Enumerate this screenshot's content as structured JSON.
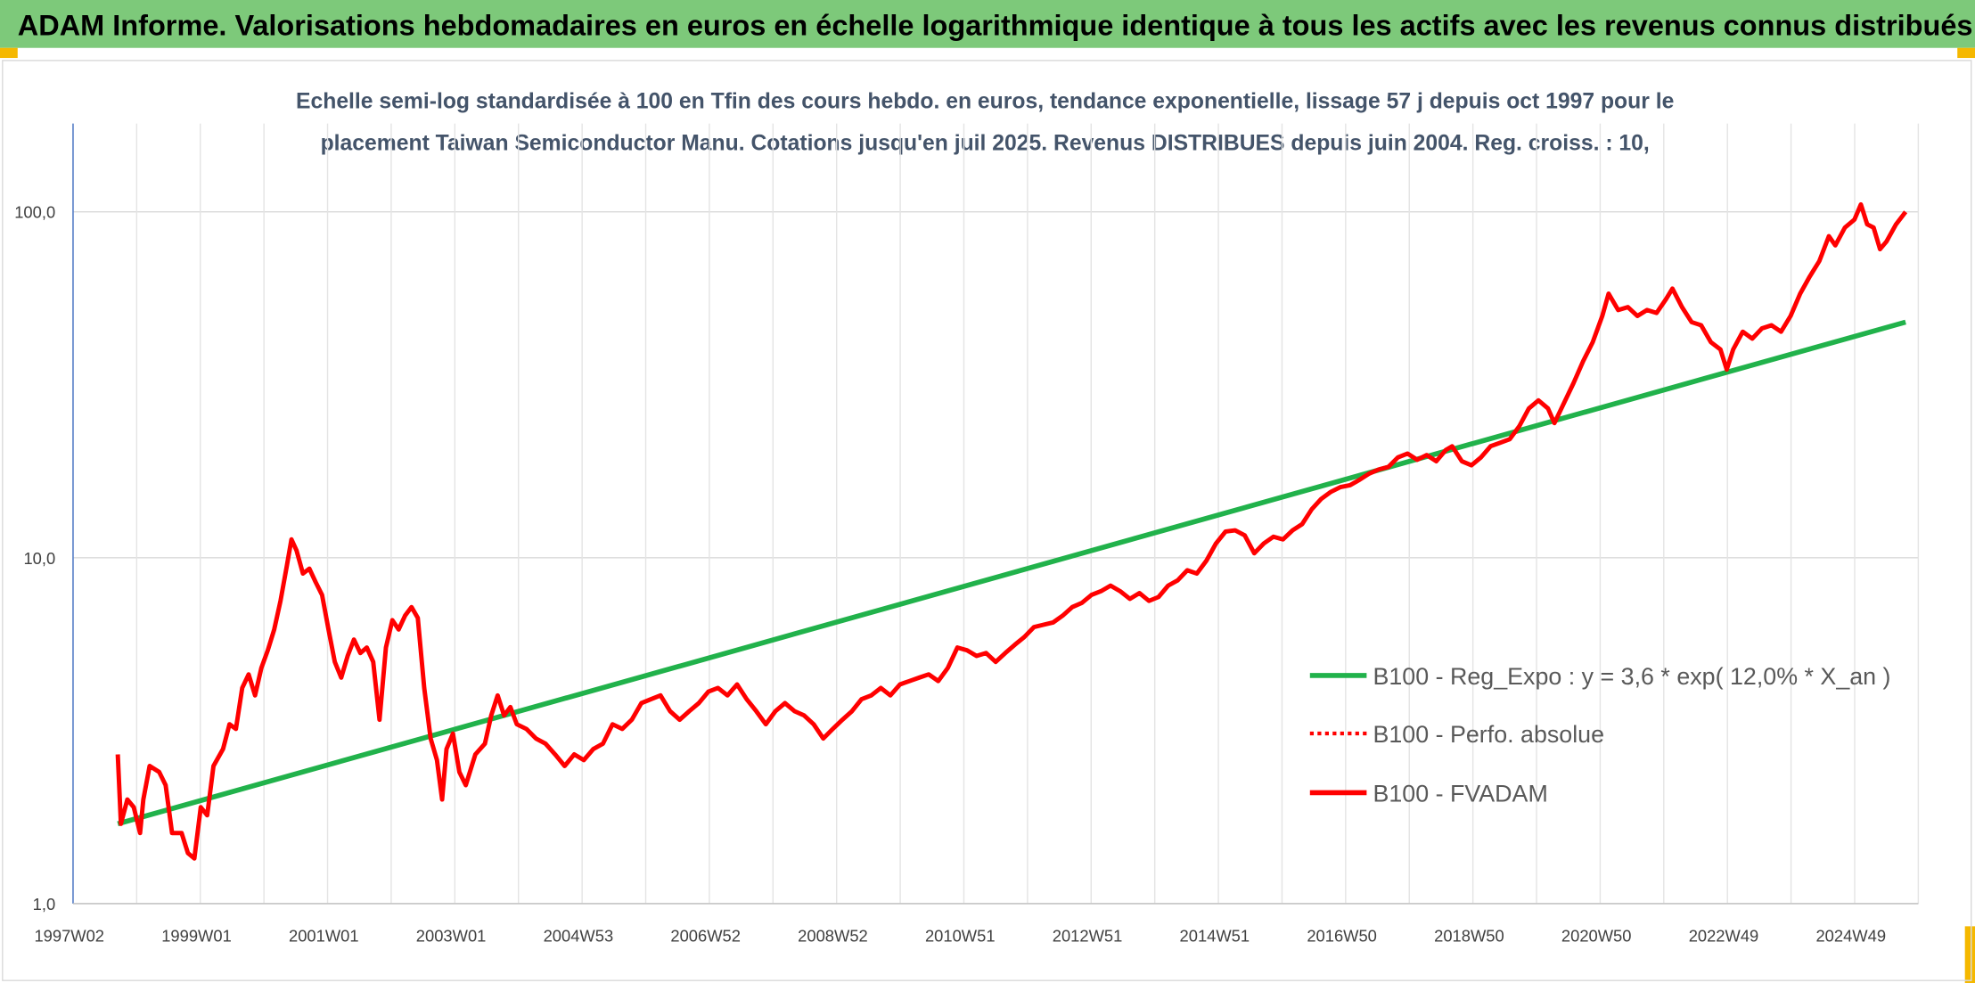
{
  "header": {
    "title": "ADAM Informe. Valorisations hebdomadaires en euros en échelle logarithmique identique à tous les actifs avec les revenus connus distribués",
    "background": "#7dc97a"
  },
  "chart_data": {
    "type": "line",
    "title_line1": "Echelle semi-log standardisée à 100 en Tfin des cours hebdo. en euros, tendance exponentielle, lissage 57 j depuis oct 1997 pour le",
    "title_line2": "placement Taiwan Semiconductor Manu. Cotations jusqu'en juil 2025. Revenus DISTRIBUES depuis juin 2004. Reg. croiss. : 10,",
    "y_scale": "log",
    "ylim": [
      1,
      180
    ],
    "y_ticks": [
      {
        "value": 1,
        "label": "1,0"
      },
      {
        "value": 10,
        "label": "10,0"
      },
      {
        "value": 100,
        "label": "100,0"
      }
    ],
    "x_tick_labels": [
      "1997W02",
      "1999W01",
      "2001W01",
      "2003W01",
      "2004W53",
      "2006W52",
      "2008W52",
      "2010W51",
      "2012W51",
      "2014W51",
      "2016W50",
      "2018W50",
      "2020W50",
      "2022W49",
      "2024W49"
    ],
    "xlim": [
      1997.0,
      2025.9
    ],
    "grid": true,
    "legend_position": "right",
    "series": [
      {
        "name": "B100 - Reg_Expo : y = 3,6 * exp( 12,0% *  X_an )",
        "color": "#21b24b",
        "style": "solid",
        "points": [
          [
            1997.7,
            1.7
          ],
          [
            2025.7,
            48.0
          ]
        ]
      },
      {
        "name": "B100 - Perfo. absolue",
        "color": "#ff0000",
        "style": "dotted",
        "points": []
      },
      {
        "name": "B100 - FVADAM",
        "color": "#ff0000",
        "style": "solid",
        "points": [
          [
            1997.7,
            2.7
          ],
          [
            1997.75,
            1.7
          ],
          [
            1997.85,
            2.0
          ],
          [
            1997.95,
            1.9
          ],
          [
            1998.05,
            1.6
          ],
          [
            1998.1,
            2.0
          ],
          [
            1998.2,
            2.5
          ],
          [
            1998.35,
            2.4
          ],
          [
            1998.45,
            2.2
          ],
          [
            1998.55,
            1.6
          ],
          [
            1998.7,
            1.6
          ],
          [
            1998.8,
            1.4
          ],
          [
            1998.9,
            1.35
          ],
          [
            1999.0,
            1.9
          ],
          [
            1999.1,
            1.8
          ],
          [
            1999.2,
            2.5
          ],
          [
            1999.35,
            2.8
          ],
          [
            1999.45,
            3.3
          ],
          [
            1999.55,
            3.2
          ],
          [
            1999.65,
            4.2
          ],
          [
            1999.75,
            4.6
          ],
          [
            1999.85,
            4.0
          ],
          [
            1999.95,
            4.8
          ],
          [
            2000.05,
            5.4
          ],
          [
            2000.15,
            6.2
          ],
          [
            2000.25,
            7.5
          ],
          [
            2000.35,
            9.5
          ],
          [
            2000.42,
            11.3
          ],
          [
            2000.5,
            10.5
          ],
          [
            2000.6,
            9.0
          ],
          [
            2000.7,
            9.3
          ],
          [
            2000.8,
            8.5
          ],
          [
            2000.9,
            7.8
          ],
          [
            2001.0,
            6.2
          ],
          [
            2001.1,
            5.0
          ],
          [
            2001.2,
            4.5
          ],
          [
            2001.3,
            5.2
          ],
          [
            2001.4,
            5.8
          ],
          [
            2001.5,
            5.3
          ],
          [
            2001.6,
            5.5
          ],
          [
            2001.7,
            5.0
          ],
          [
            2001.8,
            3.4
          ],
          [
            2001.9,
            5.5
          ],
          [
            2002.0,
            6.6
          ],
          [
            2002.1,
            6.2
          ],
          [
            2002.2,
            6.8
          ],
          [
            2002.3,
            7.2
          ],
          [
            2002.4,
            6.7
          ],
          [
            2002.5,
            4.2
          ],
          [
            2002.6,
            3.0
          ],
          [
            2002.7,
            2.6
          ],
          [
            2002.78,
            2.0
          ],
          [
            2002.85,
            2.8
          ],
          [
            2002.95,
            3.1
          ],
          [
            2003.05,
            2.4
          ],
          [
            2003.15,
            2.2
          ],
          [
            2003.3,
            2.7
          ],
          [
            2003.45,
            2.9
          ],
          [
            2003.55,
            3.5
          ],
          [
            2003.65,
            4.0
          ],
          [
            2003.75,
            3.5
          ],
          [
            2003.85,
            3.7
          ],
          [
            2003.95,
            3.3
          ],
          [
            2004.1,
            3.2
          ],
          [
            2004.25,
            3.0
          ],
          [
            2004.4,
            2.9
          ],
          [
            2004.55,
            2.7
          ],
          [
            2004.7,
            2.5
          ],
          [
            2004.85,
            2.7
          ],
          [
            2005.0,
            2.6
          ],
          [
            2005.15,
            2.8
          ],
          [
            2005.3,
            2.9
          ],
          [
            2005.45,
            3.3
          ],
          [
            2005.6,
            3.2
          ],
          [
            2005.75,
            3.4
          ],
          [
            2005.9,
            3.8
          ],
          [
            2006.05,
            3.9
          ],
          [
            2006.2,
            4.0
          ],
          [
            2006.35,
            3.6
          ],
          [
            2006.5,
            3.4
          ],
          [
            2006.65,
            3.6
          ],
          [
            2006.8,
            3.8
          ],
          [
            2006.95,
            4.1
          ],
          [
            2007.1,
            4.2
          ],
          [
            2007.25,
            4.0
          ],
          [
            2007.4,
            4.3
          ],
          [
            2007.55,
            3.9
          ],
          [
            2007.7,
            3.6
          ],
          [
            2007.85,
            3.3
          ],
          [
            2008.0,
            3.6
          ],
          [
            2008.15,
            3.8
          ],
          [
            2008.3,
            3.6
          ],
          [
            2008.45,
            3.5
          ],
          [
            2008.6,
            3.3
          ],
          [
            2008.75,
            3.0
          ],
          [
            2008.9,
            3.2
          ],
          [
            2009.05,
            3.4
          ],
          [
            2009.2,
            3.6
          ],
          [
            2009.35,
            3.9
          ],
          [
            2009.5,
            4.0
          ],
          [
            2009.65,
            4.2
          ],
          [
            2009.8,
            4.0
          ],
          [
            2009.95,
            4.3
          ],
          [
            2010.1,
            4.4
          ],
          [
            2010.25,
            4.5
          ],
          [
            2010.4,
            4.6
          ],
          [
            2010.55,
            4.4
          ],
          [
            2010.7,
            4.8
          ],
          [
            2010.85,
            5.5
          ],
          [
            2011.0,
            5.4
          ],
          [
            2011.15,
            5.2
          ],
          [
            2011.3,
            5.3
          ],
          [
            2011.45,
            5.0
          ],
          [
            2011.6,
            5.3
          ],
          [
            2011.75,
            5.6
          ],
          [
            2011.9,
            5.9
          ],
          [
            2012.05,
            6.3
          ],
          [
            2012.2,
            6.4
          ],
          [
            2012.35,
            6.5
          ],
          [
            2012.5,
            6.8
          ],
          [
            2012.65,
            7.2
          ],
          [
            2012.8,
            7.4
          ],
          [
            2012.95,
            7.8
          ],
          [
            2013.1,
            8.0
          ],
          [
            2013.25,
            8.3
          ],
          [
            2013.4,
            8.0
          ],
          [
            2013.55,
            7.6
          ],
          [
            2013.7,
            7.9
          ],
          [
            2013.85,
            7.5
          ],
          [
            2014.0,
            7.7
          ],
          [
            2014.15,
            8.3
          ],
          [
            2014.3,
            8.6
          ],
          [
            2014.45,
            9.2
          ],
          [
            2014.6,
            9.0
          ],
          [
            2014.75,
            9.8
          ],
          [
            2014.9,
            11.0
          ],
          [
            2015.05,
            11.9
          ],
          [
            2015.2,
            12.0
          ],
          [
            2015.35,
            11.6
          ],
          [
            2015.5,
            10.3
          ],
          [
            2015.65,
            11.0
          ],
          [
            2015.8,
            11.5
          ],
          [
            2015.95,
            11.3
          ],
          [
            2016.1,
            12.0
          ],
          [
            2016.25,
            12.5
          ],
          [
            2016.4,
            13.8
          ],
          [
            2016.55,
            14.8
          ],
          [
            2016.7,
            15.5
          ],
          [
            2016.85,
            16.0
          ],
          [
            2017.0,
            16.2
          ],
          [
            2017.15,
            16.8
          ],
          [
            2017.3,
            17.5
          ],
          [
            2017.45,
            18.0
          ],
          [
            2017.6,
            18.3
          ],
          [
            2017.75,
            19.5
          ],
          [
            2017.9,
            20.0
          ],
          [
            2018.05,
            19.2
          ],
          [
            2018.2,
            19.8
          ],
          [
            2018.35,
            19.0
          ],
          [
            2018.5,
            20.5
          ],
          [
            2018.6,
            21.0
          ],
          [
            2018.75,
            19.0
          ],
          [
            2018.9,
            18.5
          ],
          [
            2019.05,
            19.5
          ],
          [
            2019.2,
            21.0
          ],
          [
            2019.35,
            21.5
          ],
          [
            2019.5,
            22.0
          ],
          [
            2019.65,
            24.0
          ],
          [
            2019.8,
            27.0
          ],
          [
            2019.95,
            28.5
          ],
          [
            2020.1,
            27.0
          ],
          [
            2020.2,
            24.5
          ],
          [
            2020.35,
            28.0
          ],
          [
            2020.5,
            32.0
          ],
          [
            2020.65,
            37.0
          ],
          [
            2020.8,
            42.0
          ],
          [
            2020.95,
            50.0
          ],
          [
            2021.05,
            58.0
          ],
          [
            2021.2,
            52.0
          ],
          [
            2021.35,
            53.0
          ],
          [
            2021.5,
            50.0
          ],
          [
            2021.65,
            52.0
          ],
          [
            2021.8,
            51.0
          ],
          [
            2021.95,
            56.0
          ],
          [
            2022.05,
            60.0
          ],
          [
            2022.2,
            53.0
          ],
          [
            2022.35,
            48.0
          ],
          [
            2022.5,
            47.0
          ],
          [
            2022.65,
            42.0
          ],
          [
            2022.8,
            40.0
          ],
          [
            2022.9,
            35.0
          ],
          [
            2023.0,
            40.0
          ],
          [
            2023.15,
            45.0
          ],
          [
            2023.3,
            43.0
          ],
          [
            2023.45,
            46.0
          ],
          [
            2023.6,
            47.0
          ],
          [
            2023.75,
            45.0
          ],
          [
            2023.9,
            50.0
          ],
          [
            2024.05,
            58.0
          ],
          [
            2024.2,
            65.0
          ],
          [
            2024.35,
            72.0
          ],
          [
            2024.5,
            85.0
          ],
          [
            2024.6,
            80.0
          ],
          [
            2024.75,
            90.0
          ],
          [
            2024.9,
            95.0
          ],
          [
            2025.0,
            105.0
          ],
          [
            2025.1,
            92.0
          ],
          [
            2025.2,
            90.0
          ],
          [
            2025.3,
            78.0
          ],
          [
            2025.4,
            82.0
          ],
          [
            2025.55,
            92.0
          ],
          [
            2025.7,
            100.0
          ]
        ]
      }
    ]
  }
}
